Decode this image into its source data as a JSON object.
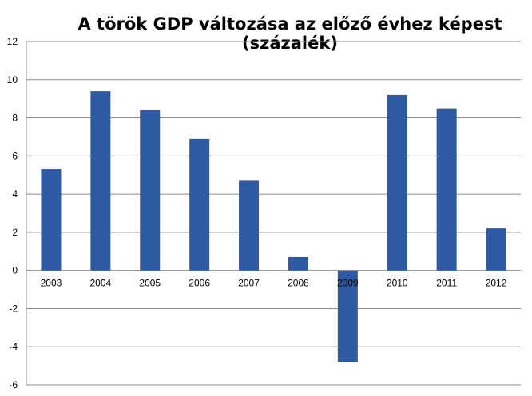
{
  "chart_data": {
    "type": "bar",
    "title": "A török GDP változása az előző évhez képest (százalék)",
    "categories": [
      "2003",
      "2004",
      "2005",
      "2006",
      "2007",
      "2008",
      "2009",
      "2010",
      "2011",
      "2012"
    ],
    "values": [
      5.3,
      9.4,
      8.4,
      6.9,
      4.7,
      0.7,
      -4.8,
      9.2,
      8.5,
      2.2
    ],
    "ylim": [
      -6,
      12
    ],
    "yticks": [
      "12",
      "10",
      "8",
      "6",
      "4",
      "2",
      "0",
      "-2",
      "-4",
      "-6"
    ],
    "grid": true,
    "bar_color": "#2E5AA4",
    "xlabel": "",
    "ylabel": ""
  }
}
